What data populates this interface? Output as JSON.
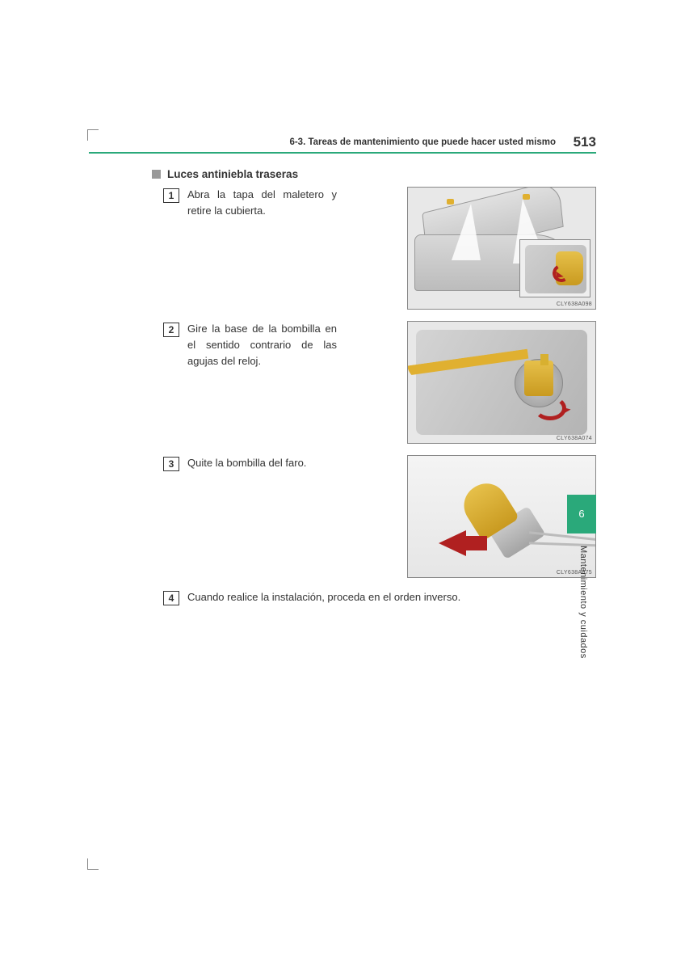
{
  "header": {
    "section_path": "6-3. Tareas de mantenimiento que puede hacer usted mismo",
    "page_number": "513"
  },
  "sidebar": {
    "chapter_number": "6",
    "chapter_label": "Mantenimiento y cuidados",
    "tab_color": "#2aa97a"
  },
  "subsection": {
    "title": "Luces antiniebla traseras"
  },
  "steps": [
    {
      "num": "1",
      "text": "Abra la tapa del maletero y retire la cubierta.",
      "img_code": "CLY638A098"
    },
    {
      "num": "2",
      "text": "Gire la base de la bombilla en el sentido contrario de las agujas del reloj.",
      "img_code": "CLY638A074"
    },
    {
      "num": "3",
      "text": "Quite la bombilla del faro.",
      "img_code": "CLY638A075"
    },
    {
      "num": "4",
      "text": "Cuando realice la instalación, proceda en el orden inverso."
    }
  ],
  "colors": {
    "accent": "#2aa97a",
    "highlight_yellow": "#e0b030",
    "arrow_red": "#b02020",
    "border_gray": "#888888"
  }
}
